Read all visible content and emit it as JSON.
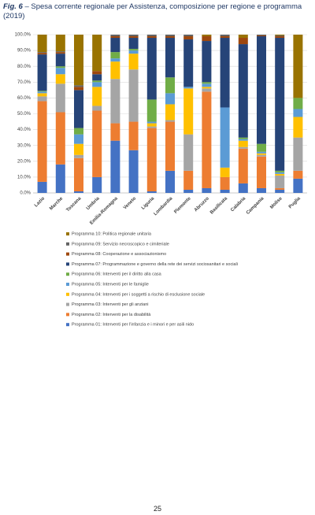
{
  "figure_label": "Fig. 6",
  "page_number": "25",
  "chart_data": {
    "type": "stacked_bar",
    "title": "– Spesa corrente regionale per Assistenza, composizione per regione e programma (2019)",
    "categories": [
      "Lazio",
      "Marche",
      "Toscana",
      "Umbria",
      "Emilia-Romagna",
      "Veneto",
      "Liguria",
      "Lombardia",
      "Piemonte",
      "Abruzzo",
      "Basilicata",
      "Calabria",
      "Campania",
      "Molise",
      "Puglia"
    ],
    "ylim": [
      0,
      100
    ],
    "yticks": [
      {
        "value": 0,
        "label": "0.0%"
      },
      {
        "value": 10,
        "label": "10.0%"
      },
      {
        "value": 20,
        "label": "20.0%"
      },
      {
        "value": 30,
        "label": "30.0%"
      },
      {
        "value": 40,
        "label": "40.0%"
      },
      {
        "value": 50,
        "label": "50.0%"
      },
      {
        "value": 60,
        "label": "60.0%"
      },
      {
        "value": 70,
        "label": "70.0%"
      },
      {
        "value": 80,
        "label": "80.0%"
      },
      {
        "value": 90,
        "label": "90.0%"
      },
      {
        "value": 100,
        "label": "100.0%"
      }
    ],
    "grid": true,
    "series": [
      {
        "name": "Programma 01: Interventi per l'infanzia e i minori e per asili nido",
        "color": "#4472c4",
        "values": [
          7,
          18,
          1,
          10,
          33,
          27,
          1,
          14,
          2,
          3,
          2,
          6,
          3,
          2,
          9
        ]
      },
      {
        "name": "Programma 02: Interventi per la disabilità",
        "color": "#ed7d31",
        "values": [
          51,
          33,
          21,
          42,
          11,
          18,
          40,
          31,
          12,
          61,
          8,
          22,
          20,
          1,
          5
        ]
      },
      {
        "name": "Programma 03: Interventi per gli anziani",
        "color": "#a5a5a5",
        "values": [
          3,
          18,
          2,
          3,
          28,
          33,
          1,
          1,
          23,
          2,
          0,
          1,
          1,
          8,
          21
        ]
      },
      {
        "name": "Programma 04: Interventi per i soggetti a rischio di esclusione sociale",
        "color": "#ffc000",
        "values": [
          2,
          6,
          7,
          12,
          11,
          10,
          2,
          10,
          29,
          1,
          6,
          4,
          1,
          1,
          13
        ]
      },
      {
        "name": "Programma 05: Interventi per le famiglie",
        "color": "#5b9bd5",
        "values": [
          1,
          4,
          6,
          3,
          2,
          2,
          1,
          7,
          1,
          2,
          38,
          1,
          1,
          1,
          5
        ]
      },
      {
        "name": "Programma 06: Interventi per il diritto alla casa",
        "color": "#70ad47",
        "values": [
          0.5,
          1,
          4,
          1,
          4,
          1,
          14,
          10,
          0,
          1,
          0,
          1,
          5,
          1,
          7
        ]
      },
      {
        "name": "Programma 07: Programmazione e governo della rete dei servizi sociosanitari e sociali",
        "color": "#264478",
        "values": [
          23,
          8,
          24,
          4,
          9,
          7,
          39,
          25,
          30,
          26,
          44,
          59,
          68,
          84,
          0
        ]
      },
      {
        "name": "Programma 08: Cooperazione e associazionismo",
        "color": "#9e480e",
        "values": [
          1,
          1,
          2,
          2,
          1,
          1,
          1,
          1,
          2,
          3,
          1,
          4,
          0.5,
          1,
          0
        ]
      },
      {
        "name": "Programma 09: Servizio necroscopico e cimiteriale",
        "color": "#636363",
        "values": [
          0.5,
          0.5,
          1,
          0,
          1,
          1,
          1,
          1,
          1,
          0,
          1,
          0,
          0.5,
          0.5,
          0
        ]
      },
      {
        "name": "Programma 10: Politica regionale unitaria",
        "color": "#997300",
        "values": [
          11,
          10.5,
          32,
          23,
          0,
          0,
          0,
          0,
          0,
          1,
          0,
          2,
          0,
          0.5,
          40
        ]
      }
    ]
  }
}
